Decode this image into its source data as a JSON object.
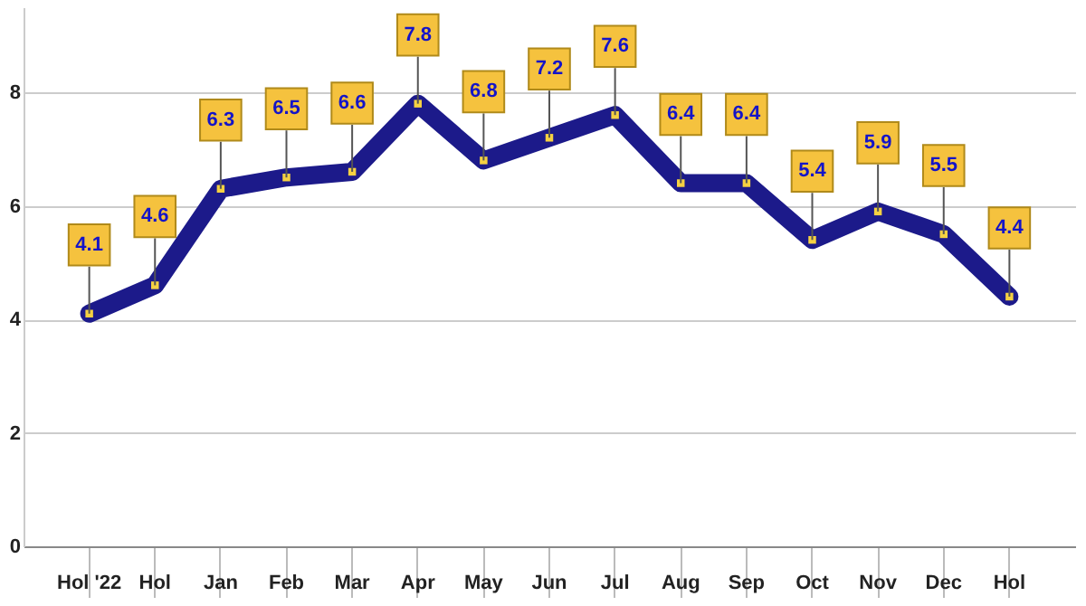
{
  "chart_data": {
    "type": "line",
    "categories": [
      "Hol '22",
      "Hol",
      "Jan",
      "Feb",
      "Mar",
      "Apr",
      "May",
      "Jun",
      "Jul",
      "Aug",
      "Sep",
      "Oct",
      "Nov",
      "Dec",
      "Hol"
    ],
    "series": [
      {
        "color": "#1c1a8a",
        "values": [
          4.1,
          4.6,
          6.3,
          6.5,
          6.6,
          7.8,
          6.8,
          7.2,
          7.6,
          6.4,
          6.4,
          5.4,
          5.9,
          5.5,
          4.4
        ]
      }
    ],
    "ylim": [
      0,
      9.5
    ],
    "yticks": [
      0,
      2,
      4,
      6,
      8
    ],
    "grid": "y",
    "marker": "square",
    "data_labels": true
  }
}
